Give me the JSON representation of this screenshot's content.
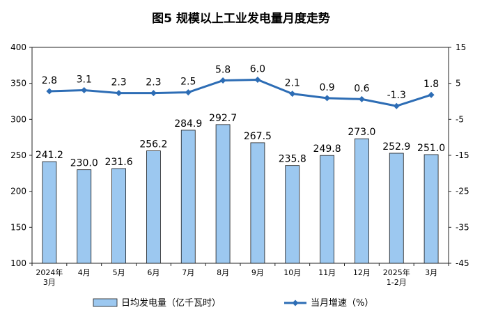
{
  "chart_data": {
    "type": "bar+line",
    "title": "图5  规模以上工业发电量月度走势",
    "categories": [
      [
        "2024年",
        "3月"
      ],
      [
        "4月"
      ],
      [
        "5月"
      ],
      [
        "6月"
      ],
      [
        "7月"
      ],
      [
        "8月"
      ],
      [
        "9月"
      ],
      [
        "10月"
      ],
      [
        "11月"
      ],
      [
        "12月"
      ],
      [
        "2025年",
        "1-2月"
      ],
      [
        "3月"
      ]
    ],
    "series": [
      {
        "name": "日均发电量（亿千瓦时）",
        "type": "bar",
        "axis": "left",
        "color": "#9cc8f0",
        "values": [
          241.2,
          230.0,
          231.6,
          256.2,
          284.9,
          292.7,
          267.5,
          235.8,
          249.8,
          273.0,
          252.9,
          251.0
        ],
        "labels": [
          "241.2",
          "230.0",
          "231.6",
          "256.2",
          "284.9",
          "292.7",
          "267.5",
          "235.8",
          "249.8",
          "273.0",
          "252.9",
          "251.0"
        ]
      },
      {
        "name": "当月增速（%）",
        "type": "line",
        "axis": "right",
        "color": "#2d6db5",
        "values": [
          2.8,
          3.1,
          2.3,
          2.3,
          2.5,
          5.8,
          6.0,
          2.1,
          0.9,
          0.6,
          -1.3,
          1.8
        ],
        "labels": [
          "2.8",
          "3.1",
          "2.3",
          "2.3",
          "2.5",
          "5.8",
          "6.0",
          "2.1",
          "0.9",
          "0.6",
          "-1.3",
          "1.8"
        ]
      }
    ],
    "y_left": {
      "min": 100,
      "max": 400,
      "ticks": [
        "100",
        "150",
        "200",
        "250",
        "300",
        "350",
        "400"
      ]
    },
    "y_right": {
      "min": -45,
      "max": 15,
      "ticks": [
        "-45",
        "-35",
        "-25",
        "-15",
        "-5",
        "5",
        "15"
      ]
    },
    "grid": false,
    "legend": "bottom"
  }
}
